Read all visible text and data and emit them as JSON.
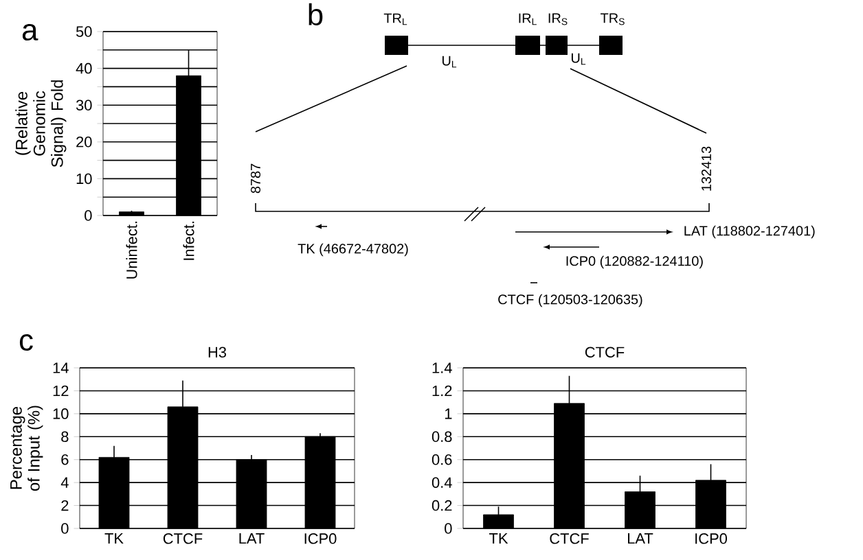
{
  "chart_data": [
    {
      "type": "bar",
      "ylabel": "(Relative Genomic Signal) Fold",
      "categories": [
        "Uninfect.",
        "Infect."
      ],
      "values": [
        1,
        38
      ],
      "errors": [
        0.3,
        7
      ],
      "color": "#000000",
      "ylim": [
        0,
        50
      ],
      "yticks": [
        0,
        {
          "value": 5,
          "label": null
        },
        10,
        {
          "value": 15,
          "label": null
        },
        20,
        {
          "value": 25,
          "label": null
        },
        30,
        {
          "value": 35,
          "label": null
        },
        40,
        {
          "value": 45,
          "label": null
        },
        50
      ],
      "grid": "y",
      "annotations": [
        "a"
      ]
    },
    {
      "type": "other",
      "annotations": [
        "b",
        "TR$_{L}$",
        "U$_{L}$",
        "IR$_{L}$",
        "IR$_{S}$",
        "U$_{L}$",
        "TR$_{S}$",
        "8787",
        "132413",
        "TK (46672-47802)",
        "LAT (118802-127401)",
        "ICP0 (120882-124110)",
        "CTCF (120503-120635)"
      ]
    },
    {
      "type": "bar",
      "title": "H3",
      "ylabel": "Percentage of Input (%)",
      "categories": [
        "TK",
        "CTCF",
        "LAT",
        "ICP0"
      ],
      "values": [
        6.2,
        10.6,
        6.0,
        8.0
      ],
      "errors": [
        1.0,
        2.3,
        0.4,
        0.3
      ],
      "color": "#000000",
      "ylim": [
        0,
        14
      ],
      "yticks": [
        0,
        2,
        4,
        6,
        8,
        10,
        12,
        14
      ],
      "grid": "y",
      "annotations": [
        "c"
      ]
    },
    {
      "type": "bar",
      "title": "CTCF",
      "categories": [
        "TK",
        "CTCF",
        "LAT",
        "ICP0"
      ],
      "values": [
        0.12,
        1.09,
        0.32,
        0.42
      ],
      "errors": [
        0.07,
        0.24,
        0.14,
        0.14
      ],
      "color": "#000000",
      "ylim": [
        0,
        1.4
      ],
      "yticks": [
        0,
        0.2,
        0.4,
        0.6,
        0.8,
        1,
        1.2,
        1.4
      ],
      "grid": "y"
    }
  ]
}
